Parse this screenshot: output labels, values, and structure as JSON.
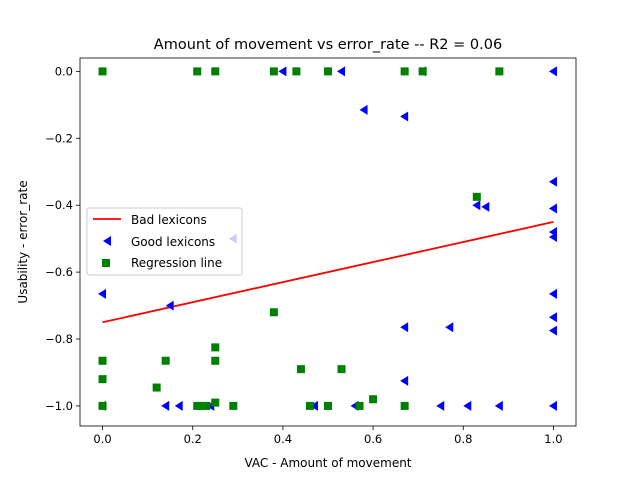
{
  "chart_data": {
    "type": "scatter",
    "title": "Amount of movement  vs  error_rate -- R2 = 0.06",
    "xlabel": "VAC - Amount of movement",
    "ylabel": "Usability - error_rate",
    "xlim": [
      -0.05,
      1.05
    ],
    "ylim": [
      -1.06,
      0.04
    ],
    "xticks": [
      "0.0",
      "0.2",
      "0.4",
      "0.6",
      "0.8",
      "1.0"
    ],
    "yticks": [
      "0.0",
      "−0.2",
      "−0.4",
      "−0.6",
      "−0.8",
      "−1.0"
    ],
    "legend_position": "center-left",
    "colors": {
      "bad": "#ff0000",
      "good": "#0000ff",
      "regression": "#008000"
    },
    "series": [
      {
        "name": "Bad lexicons",
        "kind": "line",
        "points": [
          [
            0.0,
            -0.75
          ],
          [
            1.0,
            -0.45
          ]
        ]
      },
      {
        "name": "Good lexicons",
        "kind": "triangle-left",
        "points": [
          [
            0.0,
            -0.665
          ],
          [
            0.15,
            -0.7
          ],
          [
            0.29,
            -0.5
          ],
          [
            0.4,
            0.0
          ],
          [
            0.53,
            0.0
          ],
          [
            0.58,
            -0.115
          ],
          [
            0.67,
            -0.135
          ],
          [
            0.71,
            0.0
          ],
          [
            0.83,
            -0.4
          ],
          [
            0.85,
            -0.405
          ],
          [
            1.0,
            0.0
          ],
          [
            1.0,
            -0.33
          ],
          [
            1.0,
            -0.41
          ],
          [
            1.0,
            -0.48
          ],
          [
            1.0,
            -0.495
          ],
          [
            1.0,
            -0.665
          ],
          [
            1.0,
            -0.735
          ],
          [
            1.0,
            -0.775
          ],
          [
            1.0,
            -1.0
          ],
          [
            0.67,
            -0.765
          ],
          [
            0.77,
            -0.765
          ],
          [
            0.67,
            -0.925
          ],
          [
            0.14,
            -1.0
          ],
          [
            0.17,
            -1.0
          ],
          [
            0.24,
            -1.0
          ],
          [
            0.47,
            -1.0
          ],
          [
            0.56,
            -1.0
          ],
          [
            0.75,
            -1.0
          ],
          [
            0.81,
            -1.0
          ],
          [
            0.88,
            -1.0
          ],
          [
            0.0,
            -1.0
          ]
        ]
      },
      {
        "name": "Regression line",
        "kind": "square",
        "points": [
          [
            0.0,
            0.0
          ],
          [
            0.21,
            0.0
          ],
          [
            0.25,
            0.0
          ],
          [
            0.38,
            0.0
          ],
          [
            0.43,
            0.0
          ],
          [
            0.5,
            0.0
          ],
          [
            0.67,
            0.0
          ],
          [
            0.71,
            0.0
          ],
          [
            0.88,
            0.0
          ],
          [
            0.83,
            -0.375
          ],
          [
            0.38,
            -0.72
          ],
          [
            0.25,
            -0.825
          ],
          [
            0.25,
            -0.865
          ],
          [
            0.14,
            -0.865
          ],
          [
            0.0,
            -0.865
          ],
          [
            0.0,
            -0.92
          ],
          [
            0.12,
            -0.945
          ],
          [
            0.44,
            -0.89
          ],
          [
            0.53,
            -0.89
          ],
          [
            0.6,
            -0.98
          ],
          [
            0.0,
            -1.0
          ],
          [
            0.21,
            -1.0
          ],
          [
            0.22,
            -1.0
          ],
          [
            0.23,
            -1.0
          ],
          [
            0.25,
            -0.99
          ],
          [
            0.29,
            -1.0
          ],
          [
            0.46,
            -1.0
          ],
          [
            0.5,
            -1.0
          ],
          [
            0.57,
            -1.0
          ],
          [
            0.67,
            -1.0
          ]
        ]
      }
    ]
  }
}
